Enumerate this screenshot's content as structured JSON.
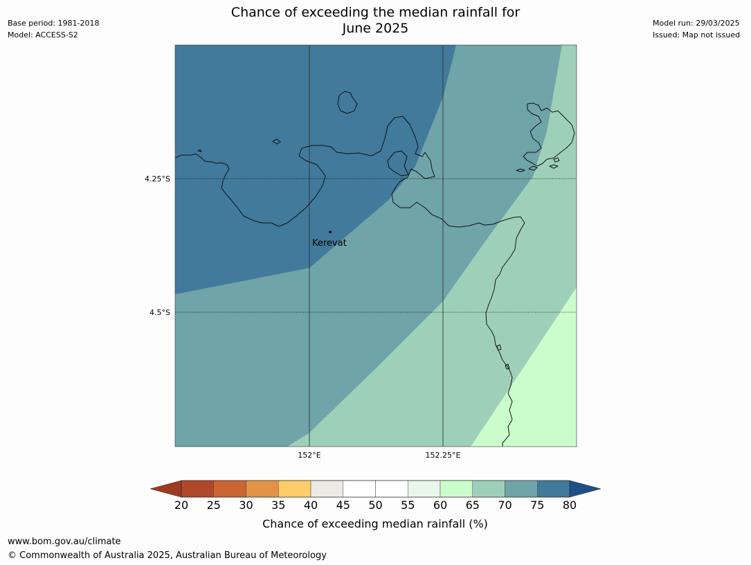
{
  "header": {
    "base_period": "Base period: 1981-2018",
    "model": "Model: ACCESS-S2",
    "model_run": "Model run: 29/03/2025",
    "issued": "Issued: Map not issued",
    "title_line1": "Chance of exceeding the median rainfall for",
    "title_line2": "June 2025"
  },
  "map": {
    "place": "Kerevat",
    "lat_labels": [
      "4.25°S",
      "4.5°S"
    ],
    "lon_labels": [
      "152°E",
      "152.25°E"
    ],
    "zones": [
      {
        "range": "75–80",
        "color": "#417a9a"
      },
      {
        "range": "70–75",
        "color": "#6fa4a8"
      },
      {
        "range": "65–70",
        "color": "#9ed0b9"
      },
      {
        "range": "60–65",
        "color": "#cbfccb"
      }
    ]
  },
  "colorbar": {
    "label": "Chance of exceeding median rainfall (%)",
    "ticks": [
      "20",
      "25",
      "30",
      "35",
      "40",
      "45",
      "50",
      "55",
      "60",
      "65",
      "70",
      "75",
      "80"
    ],
    "colors": [
      "#b0482a",
      "#cc6433",
      "#e29346",
      "#fecd67",
      "#ede9e5",
      "#ffffff",
      "#ffffff",
      "#e9f7ea",
      "#cbfccb",
      "#9ed0b9",
      "#6fa4a8",
      "#417a9a"
    ],
    "low_arrow_color": "#9e3a22",
    "high_arrow_color": "#1e5087"
  },
  "footer": {
    "site": "www.bom.gov.au/climate",
    "copyright": "© Commonwealth of Australia 2025, Australian Bureau of Meteorology"
  }
}
